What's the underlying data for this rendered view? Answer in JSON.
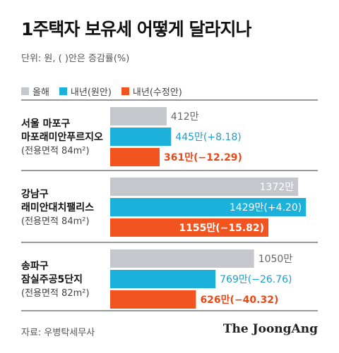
{
  "title": "1주택자 보유세 어떻게 달라지나",
  "unit_note": "단위: 원, ( )안은 증감률(%)",
  "source": "자료: 우병탁세무사",
  "brand": "The JoongAng",
  "colors": {
    "prev": "#c4c7cb",
    "plan": "#1cb1da",
    "revised": "#f2541f",
    "divider": "#333333"
  },
  "chart_data": {
    "type": "bar",
    "orientation": "horizontal",
    "title": "1주택자 보유세 어떻게 달라지나",
    "unit": "단위: 원, ( )안은 증감률(%)",
    "legend_position": "top-left",
    "series": [
      {
        "name": "올해",
        "color": "#c4c7cb"
      },
      {
        "name": "내년(원안)",
        "color": "#1cb1da"
      },
      {
        "name": "내년(수정안)",
        "color": "#f2541f"
      }
    ],
    "groups": [
      {
        "lines": [
          "서울 마포구",
          "마포래미안푸르지오",
          "(전용면적 84m²)"
        ],
        "values": [
          412,
          445,
          361
        ],
        "labels": [
          "412만",
          "445만(+8.18)",
          "361만(−12.29)"
        ]
      },
      {
        "lines": [
          "강남구",
          "래미안대치팰리스",
          "(전용면적 84m²)"
        ],
        "values": [
          1372,
          1429,
          1155
        ],
        "labels": [
          "1372만",
          "1429만(+4.20)",
          "1155만(−15.82)"
        ]
      },
      {
        "lines": [
          "송파구",
          "잠실주공5단지",
          "(전용면적 82m²)"
        ],
        "values": [
          1050,
          769,
          626
        ],
        "labels": [
          "1050만",
          "769만(−26.76)",
          "626만(−40.32)"
        ]
      }
    ],
    "xlim": [
      0,
      1500
    ]
  }
}
